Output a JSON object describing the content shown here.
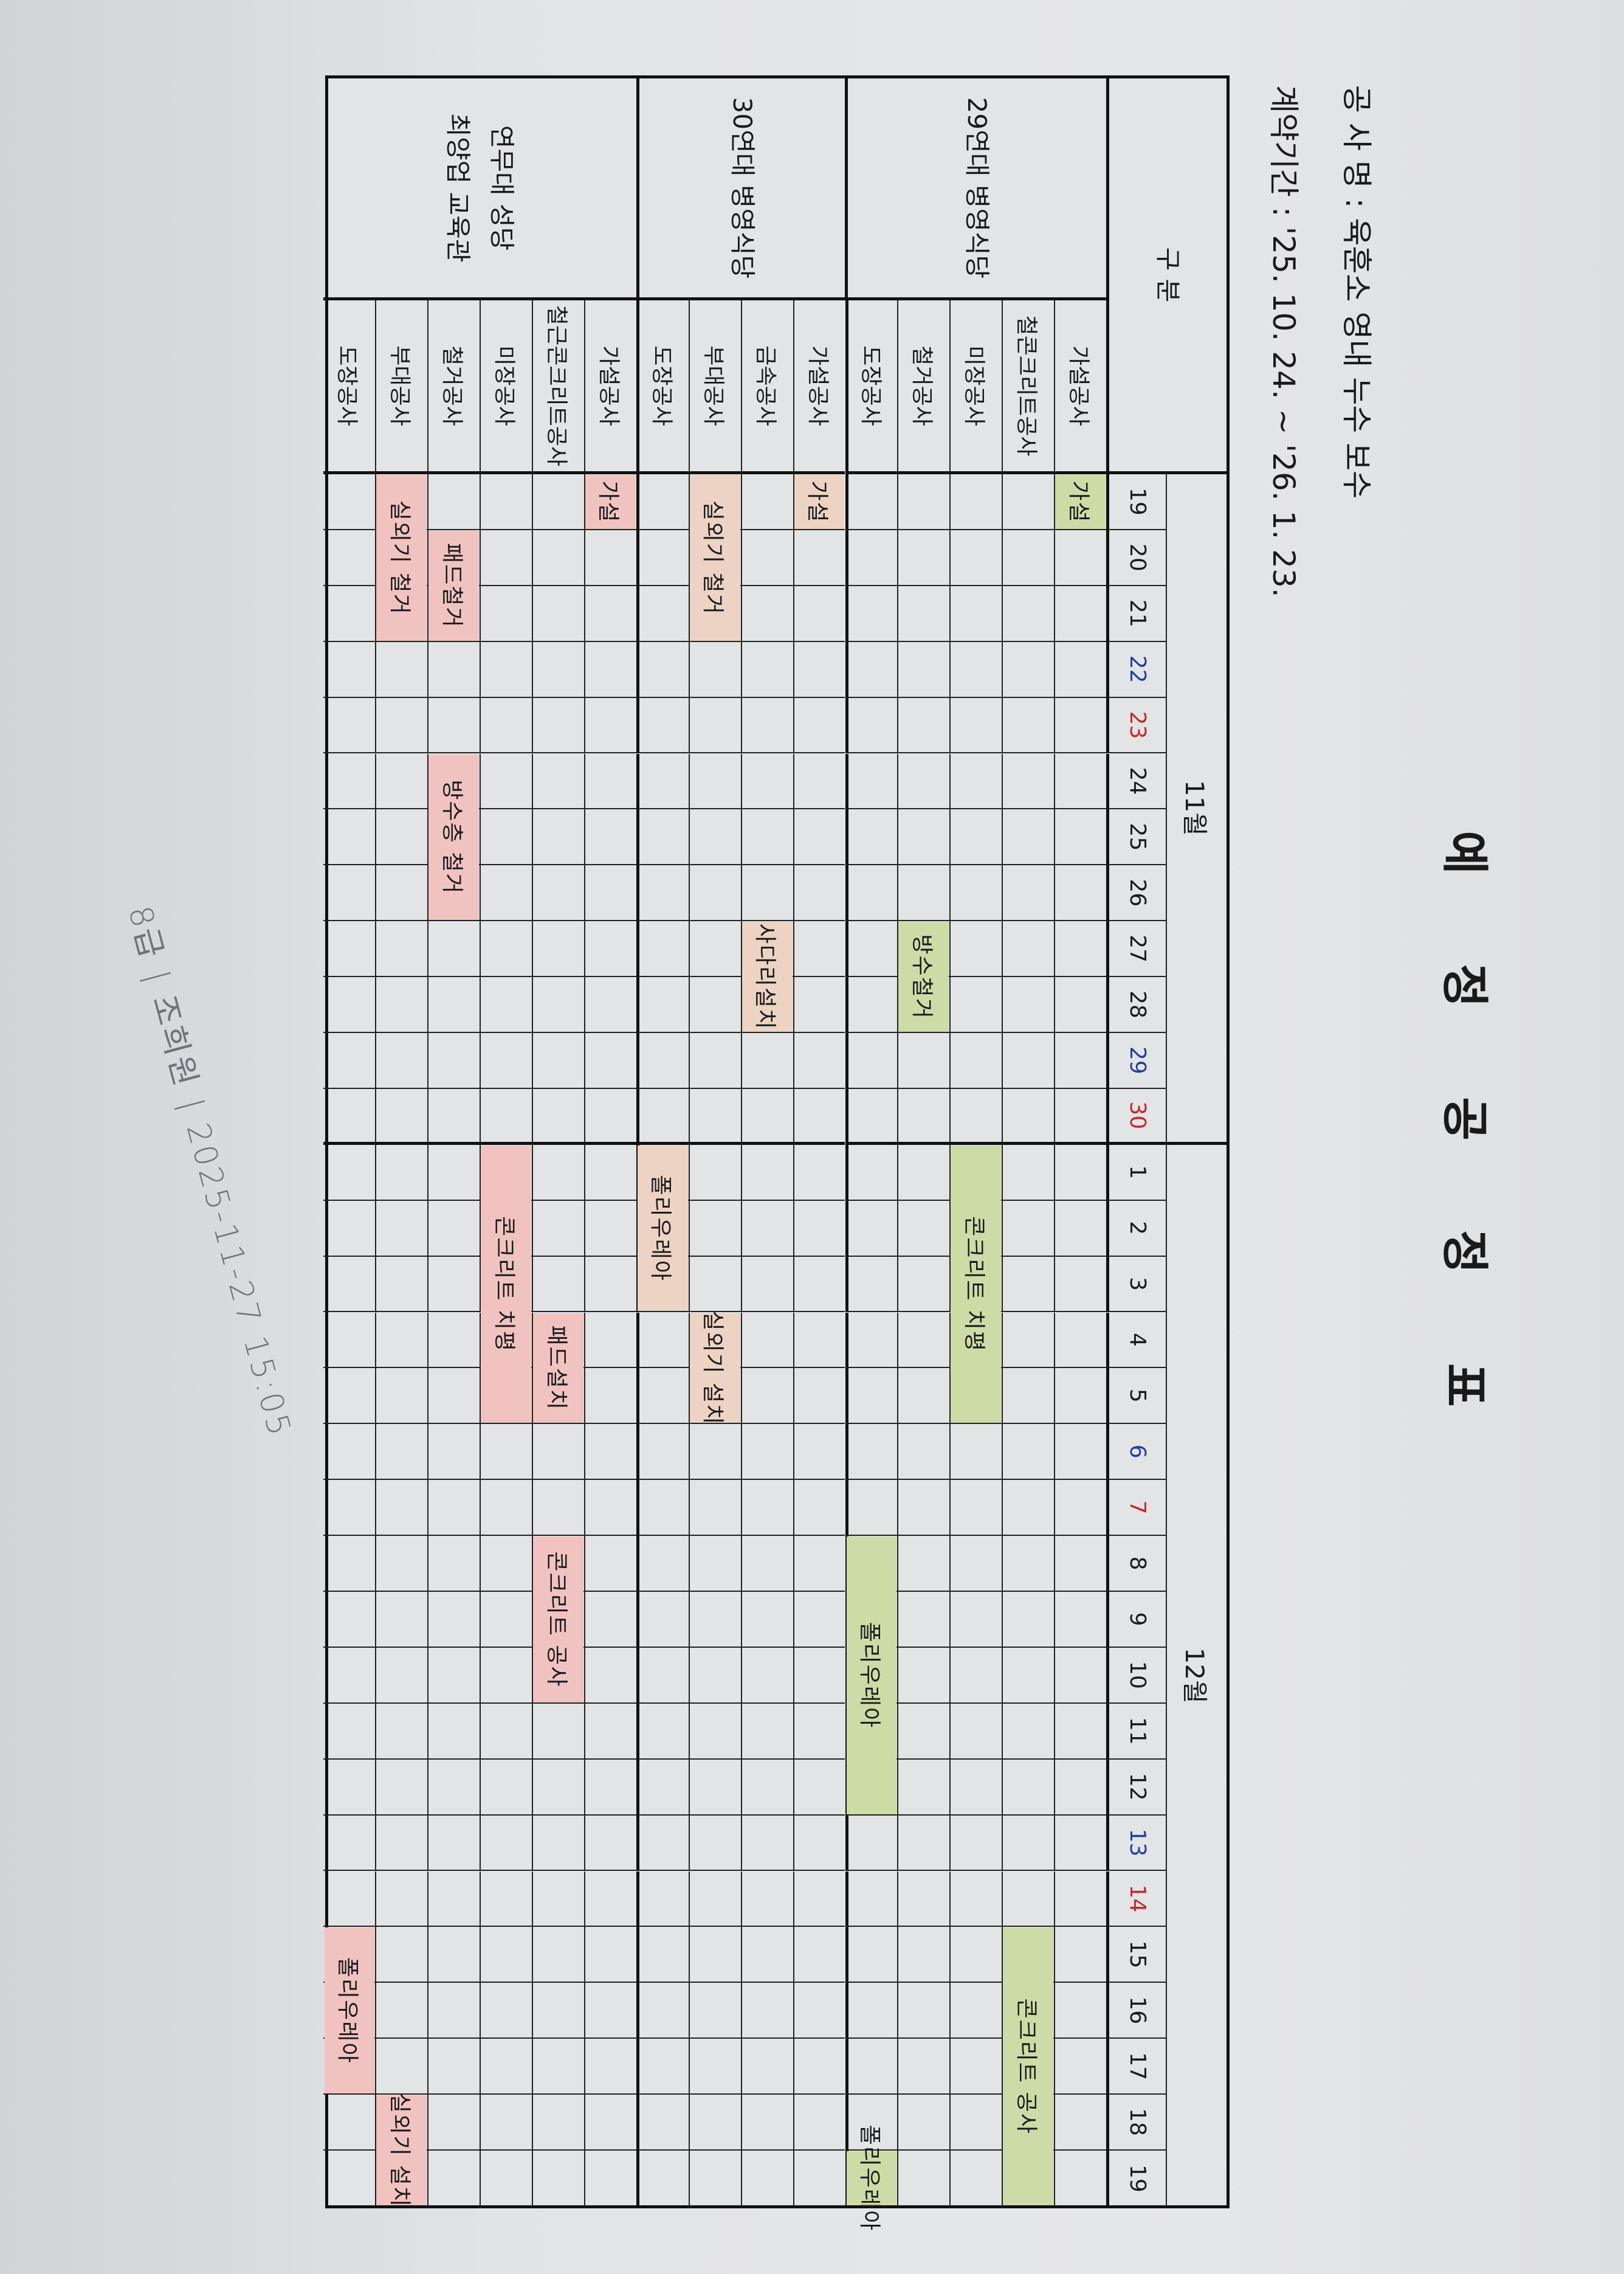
{
  "document": {
    "title": "예 정 공 정 표",
    "project_name_line": "공 사 명 : 육훈소 영내 누수 보수",
    "contract_period_line": "계약기간 : '25. 10. 24. ~ '26. 1. 23."
  },
  "table": {
    "header_label": "구 분",
    "months": [
      {
        "label": "11월",
        "days": [
          19,
          20,
          21,
          22,
          23,
          24,
          25,
          26,
          27,
          28,
          29,
          30
        ]
      },
      {
        "label": "12월",
        "days": [
          1,
          2,
          3,
          4,
          5,
          6,
          7,
          8,
          9,
          10,
          11,
          12,
          13,
          14,
          15,
          16,
          17,
          18,
          19
        ]
      }
    ],
    "day_colors": {
      "11-22": "#1f3f9e",
      "11-23": "#c62828",
      "11-29": "#1f3f9e",
      "11-30": "#c62828",
      "12-6": "#1f3f9e",
      "12-7": "#c62828",
      "12-13": "#1f3f9e",
      "12-14": "#c62828"
    },
    "groups": [
      {
        "name": "29연대 병영식당",
        "color": "#cddca6",
        "items": [
          "가설공사",
          "철콘크리트공사",
          "미장공사",
          "철거공사",
          "도장공사"
        ]
      },
      {
        "name": "30연대 병영식당",
        "color": "#ecd3c3",
        "items": [
          "가설공사",
          "금속공사",
          "부대공사",
          "도장공사"
        ]
      },
      {
        "name": "연무대 성당\n최양업 교육관",
        "color": "#f0c3c1",
        "items": [
          "가설공사",
          "철근콘크리트공사",
          "미장공사",
          "철거공사",
          "부대공사",
          "도장공사"
        ]
      }
    ],
    "tasks": [
      {
        "group": 0,
        "item": 0,
        "start": "11-19",
        "end": "11-19",
        "label": "가설"
      },
      {
        "group": 0,
        "item": 1,
        "start": "12-15",
        "end": "12-19",
        "label": "콘크리트 공사"
      },
      {
        "group": 0,
        "item": 2,
        "start": "12-1",
        "end": "12-5",
        "label": "콘크리트 치평"
      },
      {
        "group": 0,
        "item": 3,
        "start": "11-27",
        "end": "11-28",
        "label": "방수철거"
      },
      {
        "group": 0,
        "item": 4,
        "start": "12-8",
        "end": "12-12",
        "label": "폴리우레아"
      },
      {
        "group": 0,
        "item": 4,
        "start": "12-19",
        "end": "12-19",
        "label": "폴리우레아"
      },
      {
        "group": 1,
        "item": 0,
        "start": "11-19",
        "end": "11-19",
        "label": "가설"
      },
      {
        "group": 1,
        "item": 1,
        "start": "11-27",
        "end": "11-28",
        "label": "사다리설치"
      },
      {
        "group": 1,
        "item": 2,
        "start": "11-19",
        "end": "11-21",
        "label": "실외기 철거"
      },
      {
        "group": 1,
        "item": 2,
        "start": "12-4",
        "end": "12-5",
        "label": "실외기 설치"
      },
      {
        "group": 1,
        "item": 3,
        "start": "12-1",
        "end": "12-3",
        "label": "폴리우레아"
      },
      {
        "group": 2,
        "item": 0,
        "start": "11-19",
        "end": "11-19",
        "label": "가설"
      },
      {
        "group": 2,
        "item": 1,
        "start": "12-4",
        "end": "12-5",
        "label": "패드설치"
      },
      {
        "group": 2,
        "item": 1,
        "start": "12-8",
        "end": "12-10",
        "label": "콘크리트 공사"
      },
      {
        "group": 2,
        "item": 2,
        "start": "12-1",
        "end": "12-5",
        "label": "콘크리트 치평"
      },
      {
        "group": 2,
        "item": 3,
        "start": "11-20",
        "end": "11-21",
        "label": "패드철거"
      },
      {
        "group": 2,
        "item": 3,
        "start": "11-24",
        "end": "11-26",
        "label": "방수층 철거"
      },
      {
        "group": 2,
        "item": 4,
        "start": "11-19",
        "end": "11-21",
        "label": "실외기 철거"
      },
      {
        "group": 2,
        "item": 4,
        "start": "12-18",
        "end": "12-19",
        "label": "실외기 설치"
      },
      {
        "group": 2,
        "item": 5,
        "start": "12-15",
        "end": "12-17",
        "label": "폴리우레아"
      }
    ]
  },
  "watermark": "8급 | 조희원 | 2025-11-27 15:05"
}
